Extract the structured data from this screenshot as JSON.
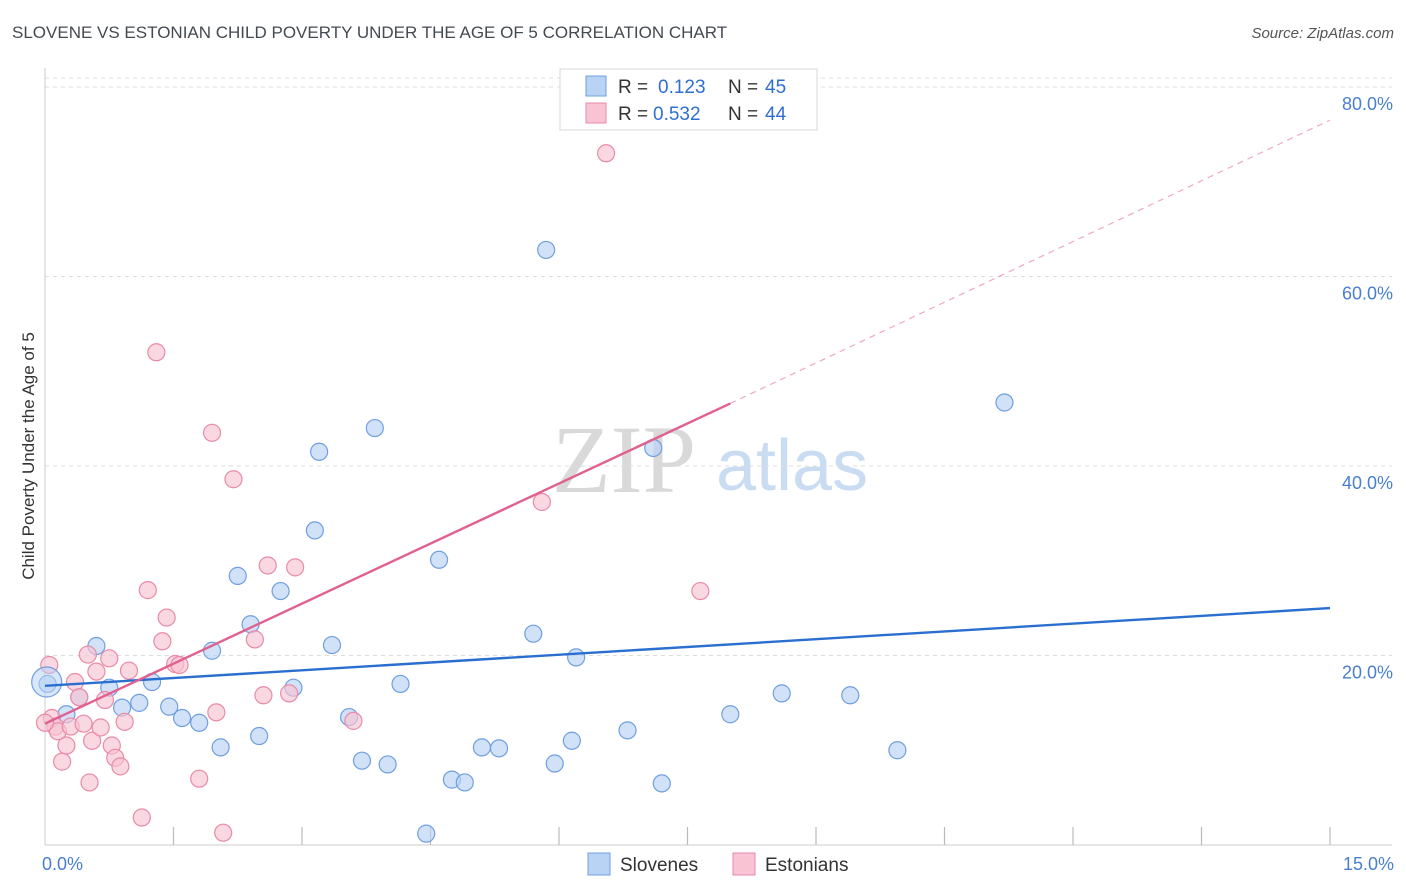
{
  "page": {
    "title": "SLOVENE VS ESTONIAN CHILD POVERTY UNDER THE AGE OF 5 CORRELATION CHART",
    "source": "Source: ZipAtlas.com",
    "watermark": {
      "zip": "ZIP",
      "atlas": "atlas"
    }
  },
  "colors": {
    "blue_fill": "#b9d3f5",
    "blue_stroke": "#6f9fe0",
    "blue_line": "#2a6fcf",
    "pink_fill": "#f8c3d2",
    "pink_stroke": "#e98aa8",
    "pink_line": "#e06090",
    "grid": "#dddddd",
    "tick_text": "#4a7fcf"
  },
  "legend": {
    "rows": [
      {
        "r_label": "R =",
        "r_value": "0.123",
        "n_label": "N =",
        "n_value": "45"
      },
      {
        "r_label": "R =",
        "r_value": "0.532",
        "n_label": "N =",
        "n_value": "44"
      }
    ]
  },
  "chart_data": {
    "type": "scatter",
    "title": "SLOVENE VS ESTONIAN CHILD POVERTY UNDER THE AGE OF 5 CORRELATION CHART",
    "xlabel": "",
    "ylabel": "Child Poverty Under the Age of 5",
    "xlim": [
      0,
      15
    ],
    "ylim": [
      0,
      82
    ],
    "x_tick_labels": [
      {
        "value": 0,
        "label": "0.0%"
      },
      {
        "value": 15,
        "label": "15.0%"
      }
    ],
    "y_tick_labels": [
      {
        "value": 20,
        "label": "20.0%"
      },
      {
        "value": 40,
        "label": "40.0%"
      },
      {
        "value": 60,
        "label": "60.0%"
      },
      {
        "value": 80,
        "label": "80.0%"
      }
    ],
    "x_minor_ticks": [
      1.5,
      3.0,
      4.5,
      6.0,
      7.5,
      9.0,
      10.5,
      12.0,
      13.5,
      15.0
    ],
    "grid": true,
    "legend_position": "bottom-center",
    "series": [
      {
        "name": "Slovenes",
        "R": 0.123,
        "N": 45,
        "trend": {
          "x0": 0,
          "y0": 16.8,
          "x1": 15,
          "y1": 25.0,
          "extrapolate": false
        },
        "points": [
          [
            0.03,
            17.0
          ],
          [
            0.25,
            13.8
          ],
          [
            0.4,
            15.6
          ],
          [
            0.6,
            21.0
          ],
          [
            0.75,
            16.6
          ],
          [
            0.9,
            14.5
          ],
          [
            1.1,
            15.0
          ],
          [
            1.25,
            17.2
          ],
          [
            1.45,
            14.6
          ],
          [
            1.6,
            13.4
          ],
          [
            1.8,
            12.9
          ],
          [
            1.95,
            20.5
          ],
          [
            2.05,
            10.3
          ],
          [
            2.25,
            28.4
          ],
          [
            2.4,
            23.3
          ],
          [
            2.5,
            11.5
          ],
          [
            2.75,
            26.8
          ],
          [
            2.9,
            16.6
          ],
          [
            3.15,
            33.2
          ],
          [
            3.2,
            41.5
          ],
          [
            3.35,
            21.1
          ],
          [
            3.55,
            13.5
          ],
          [
            3.7,
            8.9
          ],
          [
            3.85,
            44.0
          ],
          [
            4.0,
            8.5
          ],
          [
            4.15,
            17.0
          ],
          [
            4.45,
            1.2
          ],
          [
            4.6,
            30.1
          ],
          [
            4.75,
            6.9
          ],
          [
            4.9,
            6.6
          ],
          [
            5.1,
            10.3
          ],
          [
            5.3,
            10.2
          ],
          [
            5.7,
            22.3
          ],
          [
            5.85,
            62.8
          ],
          [
            5.95,
            8.6
          ],
          [
            6.15,
            11.0
          ],
          [
            6.2,
            19.8
          ],
          [
            6.8,
            12.1
          ],
          [
            7.1,
            41.9
          ],
          [
            7.2,
            6.5
          ],
          [
            8.0,
            13.8
          ],
          [
            8.6,
            16.0
          ],
          [
            9.4,
            15.8
          ],
          [
            9.95,
            10.0
          ],
          [
            11.2,
            46.7
          ]
        ]
      },
      {
        "name": "Estonians",
        "R": 0.532,
        "N": 44,
        "trend": {
          "x0": 0,
          "y0": 12.8,
          "x1": 8.0,
          "y1": 46.6,
          "extrapolate": true,
          "x_ext": 15,
          "y_ext": 76.5
        },
        "points": [
          [
            0.05,
            19.0
          ],
          [
            0.08,
            13.4
          ],
          [
            0.12,
            12.5
          ],
          [
            0.15,
            12.0
          ],
          [
            0.2,
            8.8
          ],
          [
            0.25,
            10.5
          ],
          [
            0.3,
            12.5
          ],
          [
            0.35,
            17.2
          ],
          [
            0.4,
            15.6
          ],
          [
            0.45,
            12.8
          ],
          [
            0.5,
            20.1
          ],
          [
            0.52,
            6.6
          ],
          [
            0.55,
            11.0
          ],
          [
            0.6,
            18.3
          ],
          [
            0.65,
            12.4
          ],
          [
            0.7,
            15.3
          ],
          [
            0.75,
            19.7
          ],
          [
            0.78,
            10.5
          ],
          [
            0.82,
            9.2
          ],
          [
            0.88,
            8.3
          ],
          [
            0.93,
            13.0
          ],
          [
            0.98,
            18.4
          ],
          [
            1.13,
            2.9
          ],
          [
            1.2,
            26.9
          ],
          [
            1.3,
            52.0
          ],
          [
            1.37,
            21.5
          ],
          [
            1.42,
            24.0
          ],
          [
            1.52,
            19.1
          ],
          [
            1.57,
            19.0
          ],
          [
            1.8,
            7.0
          ],
          [
            1.95,
            43.5
          ],
          [
            2.0,
            14.0
          ],
          [
            2.08,
            1.3
          ],
          [
            2.2,
            38.6
          ],
          [
            2.45,
            21.7
          ],
          [
            2.55,
            15.8
          ],
          [
            2.6,
            29.5
          ],
          [
            2.85,
            16.0
          ],
          [
            2.92,
            29.3
          ],
          [
            3.6,
            13.1
          ],
          [
            5.8,
            36.2
          ],
          [
            6.55,
            73.0
          ],
          [
            7.65,
            26.8
          ],
          [
            0.0,
            12.9
          ]
        ]
      }
    ]
  },
  "bottom_legend": [
    {
      "label": "Slovenes"
    },
    {
      "label": "Estonians"
    }
  ]
}
